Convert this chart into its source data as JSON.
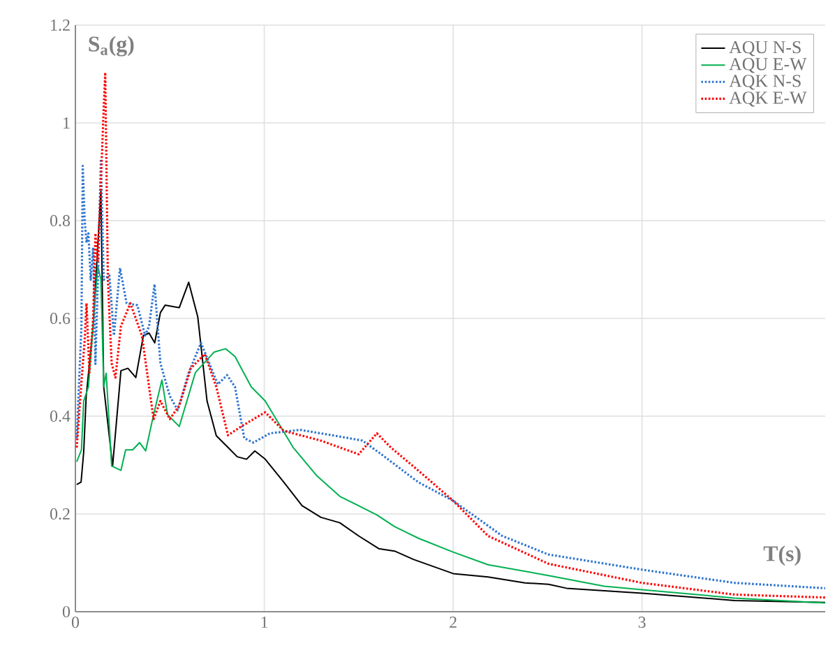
{
  "chart_data": {
    "type": "line",
    "xlabel": "T(s)",
    "ylabel": "S$_{a}$(g)",
    "xlim": [
      0,
      3.97
    ],
    "ylim": [
      0,
      1.2
    ],
    "xticks": [
      0,
      1,
      2,
      3
    ],
    "yticks": [
      0,
      0.2,
      0.4,
      0.6,
      0.8,
      1,
      1.2
    ],
    "grid": true,
    "legend": "top right",
    "marker": "none",
    "series": [
      {
        "name": "AQU N-S",
        "color": "#000000",
        "line_style": "solid",
        "x": [
          0.007,
          0.03,
          0.044,
          0.057,
          0.094,
          0.135,
          0.15,
          0.197,
          0.241,
          0.278,
          0.32,
          0.36,
          0.39,
          0.42,
          0.45,
          0.475,
          0.55,
          0.6,
          0.648,
          0.697,
          0.746,
          0.808,
          0.857,
          0.906,
          0.95,
          1.005,
          1.103,
          1.2,
          1.3,
          1.4,
          1.5,
          1.606,
          1.69,
          1.79,
          2.0,
          2.185,
          2.38,
          2.505,
          2.6,
          3.0,
          3.49,
          3.97
        ],
        "values": [
          0.26,
          0.265,
          0.327,
          0.44,
          0.584,
          0.86,
          0.46,
          0.298,
          0.493,
          0.498,
          0.479,
          0.565,
          0.57,
          0.55,
          0.612,
          0.627,
          0.622,
          0.674,
          0.603,
          0.431,
          0.36,
          0.336,
          0.317,
          0.312,
          0.329,
          0.312,
          0.265,
          0.217,
          0.193,
          0.182,
          0.155,
          0.129,
          0.124,
          0.107,
          0.078,
          0.071,
          0.059,
          0.056,
          0.048,
          0.038,
          0.023,
          0.019
        ]
      },
      {
        "name": "AQU E-W",
        "color": "#00b050",
        "line_style": "solid",
        "x": [
          0.007,
          0.032,
          0.044,
          0.069,
          0.094,
          0.118,
          0.135,
          0.15,
          0.163,
          0.192,
          0.241,
          0.266,
          0.303,
          0.34,
          0.372,
          0.414,
          0.458,
          0.488,
          0.55,
          0.635,
          0.734,
          0.796,
          0.845,
          0.931,
          1.005,
          1.153,
          1.276,
          1.4,
          1.596,
          1.69,
          1.818,
          2.0,
          2.185,
          2.505,
          2.8,
          3.0,
          3.49,
          3.97
        ],
        "values": [
          0.307,
          0.331,
          0.431,
          0.46,
          0.584,
          0.707,
          0.68,
          0.46,
          0.488,
          0.298,
          0.289,
          0.331,
          0.331,
          0.346,
          0.329,
          0.403,
          0.474,
          0.403,
          0.379,
          0.489,
          0.531,
          0.538,
          0.522,
          0.46,
          0.431,
          0.336,
          0.279,
          0.236,
          0.198,
          0.174,
          0.15,
          0.122,
          0.096,
          0.074,
          0.052,
          0.045,
          0.028,
          0.018
        ]
      },
      {
        "name": "AQK N-S",
        "color": "#2e75d0",
        "line_style": "dotted",
        "x": [
          0.007,
          0.032,
          0.039,
          0.049,
          0.059,
          0.069,
          0.081,
          0.094,
          0.106,
          0.123,
          0.135,
          0.15,
          0.18,
          0.204,
          0.236,
          0.271,
          0.328,
          0.369,
          0.39,
          0.419,
          0.45,
          0.5,
          0.542,
          0.6,
          0.665,
          0.709,
          0.754,
          0.803,
          0.845,
          0.894,
          0.943,
          1.03,
          1.19,
          1.374,
          1.52,
          1.62,
          1.815,
          2.0,
          2.26,
          2.505,
          3.0,
          3.49,
          3.97
        ],
        "values": [
          0.355,
          0.584,
          0.912,
          0.802,
          0.755,
          0.774,
          0.679,
          0.745,
          0.507,
          0.736,
          0.926,
          0.679,
          0.688,
          0.565,
          0.703,
          0.631,
          0.627,
          0.565,
          0.584,
          0.67,
          0.508,
          0.441,
          0.412,
          0.489,
          0.55,
          0.508,
          0.465,
          0.484,
          0.46,
          0.355,
          0.346,
          0.365,
          0.372,
          0.36,
          0.35,
          0.322,
          0.265,
          0.227,
          0.155,
          0.117,
          0.086,
          0.059,
          0.048
        ]
      },
      {
        "name": "AQK E-W",
        "color": "#ff0000",
        "line_style": "dotted",
        "x": [
          0.007,
          0.032,
          0.049,
          0.059,
          0.074,
          0.094,
          0.106,
          0.118,
          0.135,
          0.15,
          0.158,
          0.172,
          0.192,
          0.212,
          0.241,
          0.291,
          0.352,
          0.414,
          0.45,
          0.5,
          0.55,
          0.611,
          0.685,
          0.746,
          0.808,
          0.882,
          1.005,
          1.103,
          1.3,
          1.5,
          1.596,
          1.67,
          1.815,
          2.0,
          2.185,
          2.505,
          3.0,
          3.49,
          3.97
        ],
        "values": [
          0.336,
          0.47,
          0.555,
          0.631,
          0.489,
          0.603,
          0.774,
          0.717,
          0.879,
          1.031,
          1.103,
          0.679,
          0.508,
          0.479,
          0.584,
          0.631,
          0.565,
          0.394,
          0.431,
          0.394,
          0.422,
          0.498,
          0.527,
          0.46,
          0.361,
          0.38,
          0.408,
          0.37,
          0.35,
          0.322,
          0.365,
          0.336,
          0.289,
          0.227,
          0.155,
          0.098,
          0.059,
          0.035,
          0.029
        ]
      }
    ]
  }
}
